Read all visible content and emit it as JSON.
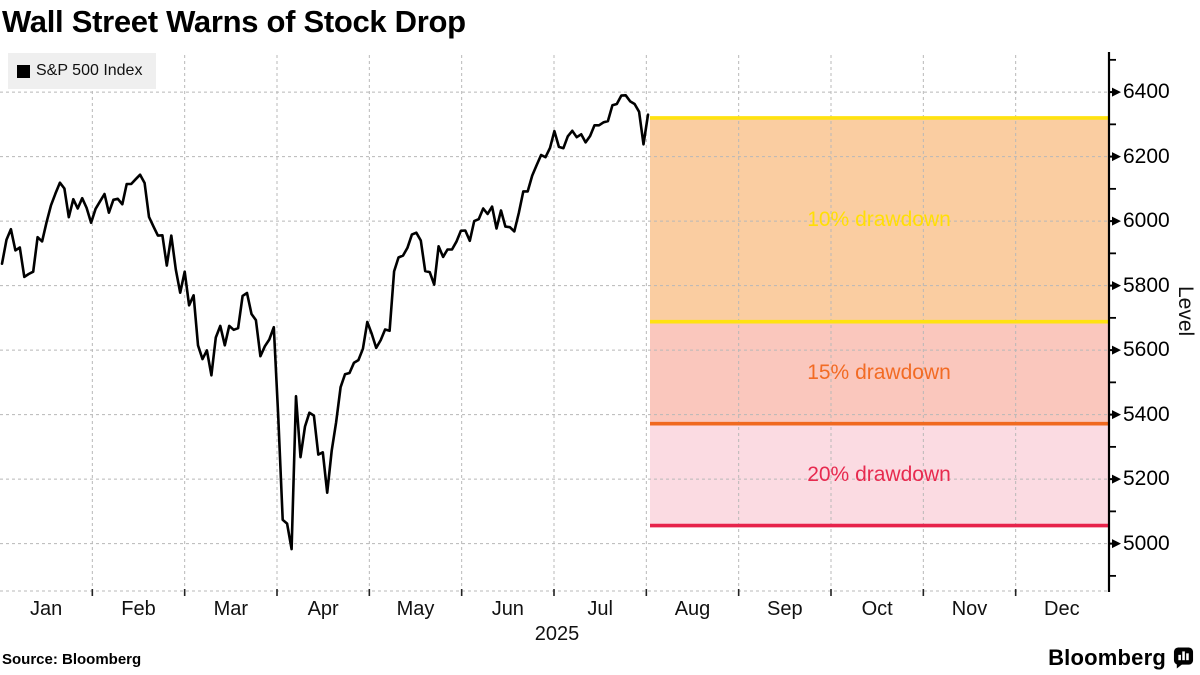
{
  "title": "Wall Street Warns of Stock Drop",
  "legend": {
    "label": "S&P 500 Index",
    "swatch_color": "#000000"
  },
  "source": "Source: Bloomberg",
  "branding": {
    "wordmark": "Bloomberg",
    "icon": "bar-chart-bubble-icon"
  },
  "chart_data": {
    "type": "line",
    "title": "Wall Street Warns of Stock Drop",
    "grid": true,
    "legend_position": "top-left",
    "x_axis": {
      "months": [
        "Jan",
        "Feb",
        "Mar",
        "Apr",
        "May",
        "Jun",
        "Jul",
        "Aug",
        "Sep",
        "Oct",
        "Nov",
        "Dec"
      ],
      "year_label": "2025"
    },
    "y_axis": {
      "label": "Level",
      "ylim": [
        4850,
        6515
      ],
      "major_ticks": [
        6400,
        6200,
        6000,
        5800,
        5600,
        5400,
        5200,
        5000
      ],
      "minor_ticks": [
        6500,
        6300,
        6100,
        5900,
        5700,
        5500,
        5300,
        5100,
        4900
      ],
      "grid_color": "#b8b8b8"
    },
    "series": [
      {
        "name": "S&P 500 Index",
        "color": "#000000",
        "values": [
          5868,
          5942,
          5975,
          5909,
          5918,
          5827,
          5836,
          5843,
          5950,
          5937,
          5997,
          6049,
          6086,
          6119,
          6101,
          6012,
          6068,
          6039,
          6071,
          6041,
          5995,
          6038,
          6061,
          6084,
          6026,
          6066,
          6069,
          6052,
          6115,
          6115,
          6130,
          6144,
          6118,
          6013,
          5983,
          5955,
          5956,
          5862,
          5955,
          5850,
          5778,
          5843,
          5739,
          5770,
          5615,
          5572,
          5599,
          5522,
          5639,
          5675,
          5615,
          5675,
          5663,
          5668,
          5768,
          5777,
          5712,
          5693,
          5581,
          5612,
          5633,
          5671,
          5397,
          5074,
          5062,
          4983,
          5457,
          5268,
          5363,
          5406,
          5397,
          5276,
          5283,
          5158,
          5288,
          5376,
          5485,
          5525,
          5529,
          5561,
          5569,
          5604,
          5687,
          5650,
          5607,
          5631,
          5664,
          5660,
          5844,
          5887,
          5893,
          5917,
          5958,
          5964,
          5940,
          5845,
          5842,
          5803,
          5922,
          5889,
          5912,
          5912,
          5936,
          5970,
          5971,
          5939,
          6000,
          6006,
          6039,
          6022,
          6045,
          5977,
          6033,
          5983,
          5981,
          5968,
          6025,
          6092,
          6092,
          6141,
          6173,
          6205,
          6198,
          6227,
          6279,
          6230,
          6226,
          6263,
          6280,
          6260,
          6269,
          6244,
          6264,
          6297,
          6297,
          6306,
          6310,
          6359,
          6363,
          6389,
          6390,
          6371,
          6363,
          6339,
          6238,
          6330
        ]
      }
    ],
    "current_level_line": {
      "value": 6320,
      "color": "#FFE211"
    },
    "zones": [
      {
        "label": "10% drawdown",
        "value_top": 6320,
        "value_bottom": 5688,
        "fill": "#FACDA1",
        "line_color": "#FFE211",
        "label_color": "#FFDF05"
      },
      {
        "label": "15% drawdown",
        "value_top": 5688,
        "value_bottom": 5372,
        "fill": "#FAC7BD",
        "line_color": "#F0691F",
        "label_color": "#F26B24"
      },
      {
        "label": "20% drawdown",
        "value_top": 5372,
        "value_bottom": 5056,
        "fill": "#FBDBE2",
        "line_color": "#E7234B",
        "label_color": "#E72A4F"
      }
    ]
  }
}
